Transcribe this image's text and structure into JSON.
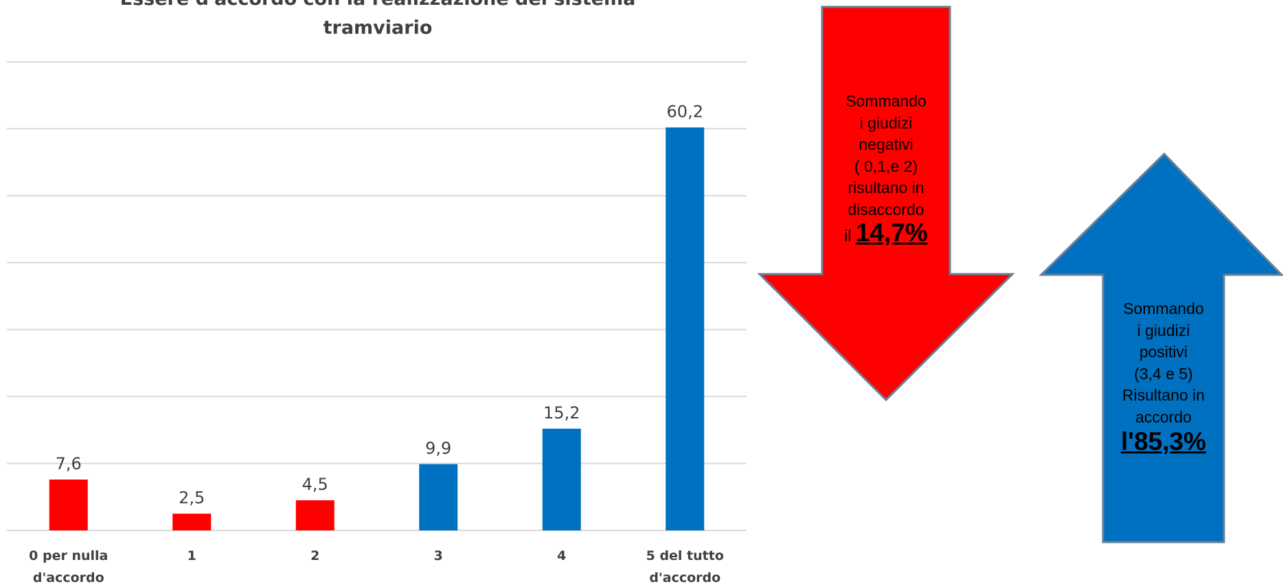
{
  "chart_data": {
    "type": "bar",
    "title_lines": [
      "Essere d'accordo con la realizzazione del sistema",
      "tramviario"
    ],
    "categories": [
      [
        "0 per nulla",
        "d'accordo"
      ],
      [
        "1"
      ],
      [
        "2"
      ],
      [
        "3"
      ],
      [
        "4"
      ],
      [
        "5 del tutto",
        "d'accordo"
      ]
    ],
    "values": [
      7.6,
      2.5,
      4.5,
      9.9,
      15.2,
      60.2
    ],
    "value_labels": [
      "7,6",
      "2,5",
      "4,5",
      "9,9",
      "15,2",
      "60,2"
    ],
    "bar_colors": [
      "#ff0000",
      "#ff0000",
      "#ff0000",
      "#0070c0",
      "#0070c0",
      "#0070c0"
    ],
    "ylim": [
      0,
      70
    ],
    "grid_step": 10,
    "grid": true,
    "xlabel": "",
    "ylabel": ""
  },
  "callouts": {
    "negative": {
      "color": "#ff0000",
      "lines": [
        "Sommando",
        "i giudizi",
        "negativi",
        "( 0,1,e 2)",
        "risultano in",
        "disaccordo"
      ],
      "prefix": "il",
      "percent": "14,7%"
    },
    "positive": {
      "color": "#0070c0",
      "lines": [
        "Sommando",
        "i giudizi",
        "positivi",
        "(3,4 e 5)",
        "Risultano in",
        "accordo"
      ],
      "percent": "l'85,3%"
    }
  }
}
